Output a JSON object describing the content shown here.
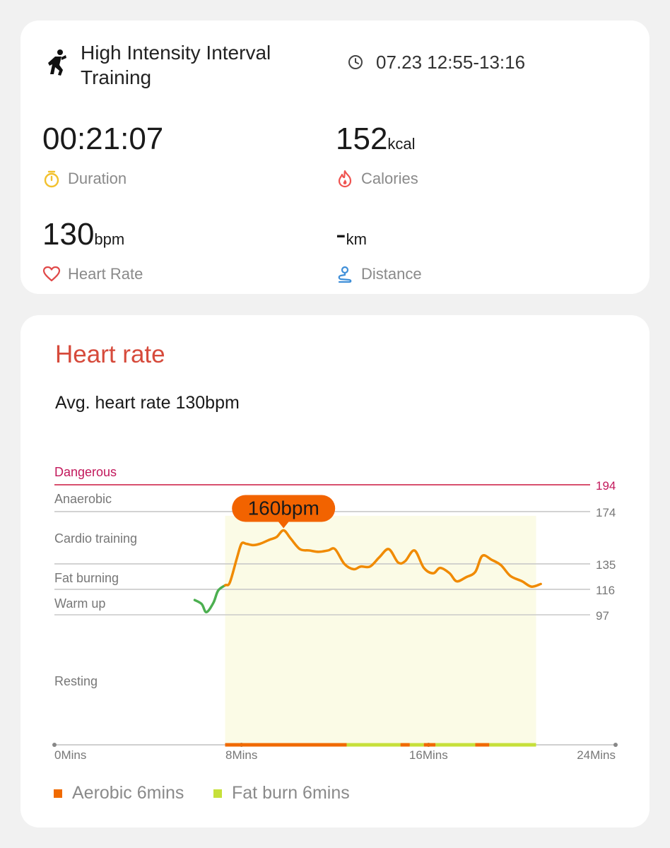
{
  "workout": {
    "title": "High Intensity Interval Training",
    "time": "07.23 12:55-13:16",
    "icon": "running-figure-icon"
  },
  "stats": {
    "duration": {
      "value": "00:21:07",
      "unit": "",
      "label": "Duration",
      "icon": "stopwatch-icon",
      "color": "#f2c12e"
    },
    "calories": {
      "value": "152",
      "unit": "kcal",
      "label": "Calories",
      "icon": "flame-icon",
      "color": "#ef5350"
    },
    "heart_rate": {
      "value": "130",
      "unit": "bpm",
      "label": "Heart Rate",
      "icon": "heart-icon",
      "color": "#e04848"
    },
    "distance": {
      "value": "-",
      "unit": "km",
      "label": "Distance",
      "icon": "route-pin-icon",
      "color": "#3f8fd8"
    }
  },
  "heart_rate_card": {
    "title": "Heart rate",
    "avg_text": "Avg. heart rate 130bpm"
  },
  "colors": {
    "accent_red": "#d64a3b",
    "danger_line": "#d8506e",
    "curve_orange": "#f08a00",
    "curve_green": "#4caf50",
    "aerobic": "#f06a00",
    "fat_burn": "#c6e03a",
    "area_fill": "#fbfbe6",
    "peak_badge": "#f26300"
  },
  "chart_data": {
    "type": "line",
    "title": "Heart rate",
    "xlabel": "",
    "ylabel": "",
    "x_ticks": [
      "0Mins",
      "8Mins",
      "16Mins",
      "24Mins"
    ],
    "xlim": [
      0,
      24
    ],
    "ylim": [
      0,
      194
    ],
    "grid": true,
    "zones": [
      {
        "name": "Dangerous",
        "threshold": 194
      },
      {
        "name": "Anaerobic",
        "threshold": 174
      },
      {
        "name": "Cardio training",
        "threshold": null
      },
      {
        "name": "Fat burning",
        "threshold": 135
      },
      {
        "name": "Warm up",
        "threshold": 116
      },
      {
        "name": "Resting",
        "threshold": 97
      }
    ],
    "threshold_labels": [
      "194",
      "174",
      "135",
      "116",
      "97"
    ],
    "peak": {
      "label": "160bpm",
      "x": 9.8,
      "y": 160
    },
    "highlight_range": [
      7.3,
      20.6
    ],
    "series": [
      {
        "x": [
          6,
          6.3,
          6.5,
          6.8,
          7.0,
          7.3,
          7.5,
          7.8,
          8.0,
          8.2,
          8.5,
          8.8,
          9.2,
          9.5,
          9.8,
          10.1,
          10.5,
          10.9,
          11.3,
          11.7,
          12.0,
          12.4,
          12.8,
          13.1,
          13.5,
          13.9,
          14.3,
          14.7,
          15.0,
          15.4,
          15.8,
          16.2,
          16.5,
          16.9,
          17.2,
          17.6,
          18.0,
          18.3,
          18.7,
          19.1,
          19.5,
          20.0,
          20.4,
          20.8
        ],
        "y": [
          108,
          105,
          99,
          106,
          115,
          119,
          121,
          139,
          150,
          150,
          149,
          150,
          153,
          155,
          160,
          154,
          146,
          145,
          144,
          145,
          146,
          135,
          131,
          133,
          133,
          140,
          146,
          136,
          137,
          145,
          132,
          128,
          132,
          128,
          122,
          125,
          129,
          141,
          138,
          134,
          126,
          122,
          118,
          120
        ]
      }
    ],
    "legend": [
      {
        "name": "Aerobic 6mins",
        "color": "#f06a00"
      },
      {
        "name": "Fat burn 6mins",
        "color": "#c6e03a"
      }
    ],
    "legend_position": "bottom-left",
    "zone_strip": [
      {
        "from": 7.3,
        "to": 12.5,
        "zone": "aerobic"
      },
      {
        "from": 12.5,
        "to": 14.8,
        "zone": "fat_burn"
      },
      {
        "from": 14.8,
        "to": 15.2,
        "zone": "aerobic"
      },
      {
        "from": 15.2,
        "to": 15.8,
        "zone": "fat_burn"
      },
      {
        "from": 15.8,
        "to": 16.3,
        "zone": "aerobic"
      },
      {
        "from": 16.3,
        "to": 18.0,
        "zone": "fat_burn"
      },
      {
        "from": 18.0,
        "to": 18.6,
        "zone": "aerobic"
      },
      {
        "from": 18.6,
        "to": 20.6,
        "zone": "fat_burn"
      }
    ]
  }
}
